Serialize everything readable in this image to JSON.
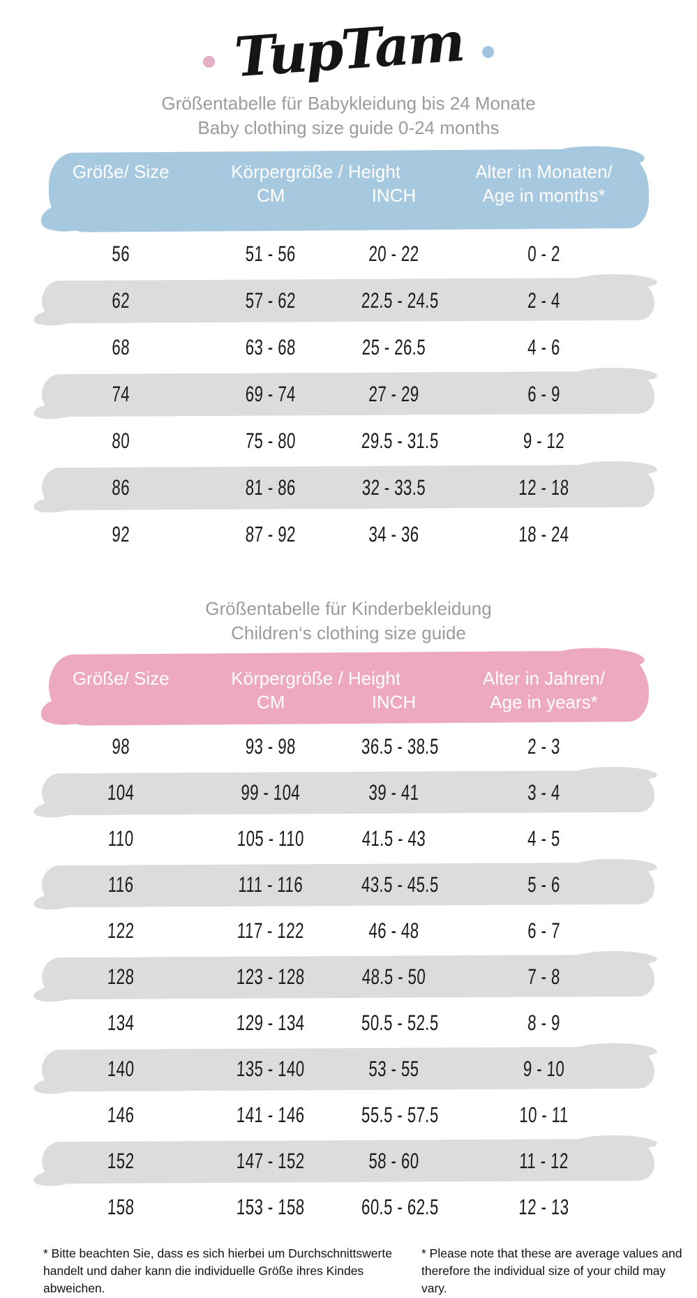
{
  "colors": {
    "blue-header": "#a7c9df",
    "pink-header": "#edaabf",
    "row-gray": "#dcdcdc",
    "title-gray": "#9b9b9b",
    "ink": "#1b1b1b",
    "logo-pink-dot": "#e5afc6",
    "logo-blue-dot": "#a3c4de"
  },
  "logo": {
    "text": "TupTam"
  },
  "baby": {
    "title_de": "Größentabelle für Babykleidung bis 24 Monate",
    "title_en": "Baby clothing size guide 0-24 months",
    "header": {
      "size": "Größe/ Size",
      "height": "Körpergröße / Height",
      "cm": "CM",
      "inch": "INCH",
      "age_line1": "Alter in Monaten/",
      "age_line2": "Age in months*"
    },
    "rows": [
      {
        "size": "56",
        "cm": "51 - 56",
        "inch": "20 - 22",
        "age": "0 - 2",
        "shaded": false
      },
      {
        "size": "62",
        "cm": "57 - 62",
        "inch": "22.5 - 24.5",
        "age": "2 - 4",
        "shaded": true
      },
      {
        "size": "68",
        "cm": "63 - 68",
        "inch": "25 - 26.5",
        "age": "4 - 6",
        "shaded": false
      },
      {
        "size": "74",
        "cm": "69 - 74",
        "inch": "27 - 29",
        "age": "6 - 9",
        "shaded": true
      },
      {
        "size": "80",
        "cm": "75 - 80",
        "inch": "29.5 - 31.5",
        "age": "9 - 12",
        "shaded": false
      },
      {
        "size": "86",
        "cm": "81 - 86",
        "inch": "32 - 33.5",
        "age": "12 - 18",
        "shaded": true
      },
      {
        "size": "92",
        "cm": "87 - 92",
        "inch": "34 - 36",
        "age": "18 - 24",
        "shaded": false
      }
    ]
  },
  "children": {
    "title_de": "Größentabelle für Kinderbekleidung",
    "title_en": "Children‘s clothing size guide",
    "header": {
      "size": "Größe/ Size",
      "height": "Körpergröße / Height",
      "cm": "CM",
      "inch": "INCH",
      "age_line1": "Alter in Jahren/",
      "age_line2": "Age in years*"
    },
    "rows": [
      {
        "size": "98",
        "cm": "93 - 98",
        "inch": "36.5 - 38.5",
        "age": "2 - 3",
        "shaded": false
      },
      {
        "size": "104",
        "cm": "99 - 104",
        "inch": "39 - 41",
        "age": "3 - 4",
        "shaded": true
      },
      {
        "size": "110",
        "cm": "105 - 110",
        "inch": "41.5 - 43",
        "age": "4 - 5",
        "shaded": false
      },
      {
        "size": "116",
        "cm": "111 - 116",
        "inch": "43.5 - 45.5",
        "age": "5 - 6",
        "shaded": true
      },
      {
        "size": "122",
        "cm": "117 - 122",
        "inch": "46 - 48",
        "age": "6 - 7",
        "shaded": false
      },
      {
        "size": "128",
        "cm": "123 - 128",
        "inch": "48.5 - 50",
        "age": "7 - 8",
        "shaded": true
      },
      {
        "size": "134",
        "cm": "129 - 134",
        "inch": "50.5 - 52.5",
        "age": "8 - 9",
        "shaded": false
      },
      {
        "size": "140",
        "cm": "135 - 140",
        "inch": "53 - 55",
        "age": "9 - 10",
        "shaded": true
      },
      {
        "size": "146",
        "cm": "141 - 146",
        "inch": "55.5 - 57.5",
        "age": "10 - 11",
        "shaded": false
      },
      {
        "size": "152",
        "cm": "147 - 152",
        "inch": "58 - 60",
        "age": "11 - 12",
        "shaded": true
      },
      {
        "size": "158",
        "cm": "153 - 158",
        "inch": "60.5 - 62.5",
        "age": "12 - 13",
        "shaded": false
      }
    ]
  },
  "footnotes": {
    "de": "* Bitte beachten Sie, dass es sich hierbei um Durchschnittswerte handelt und daher kann die individuelle Größe ihres Kindes abweichen.",
    "en": "* Please note that these are average values and therefore the individual size of your child may vary."
  }
}
